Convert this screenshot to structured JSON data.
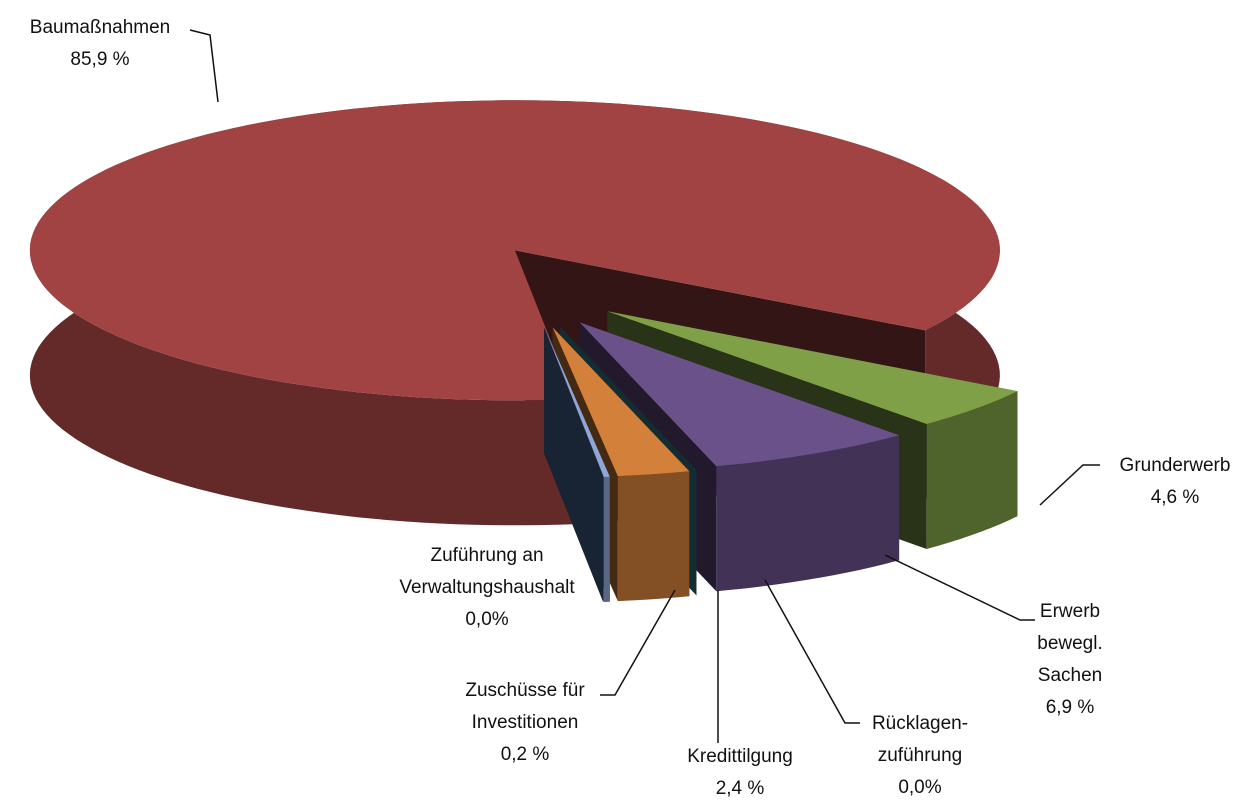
{
  "chart_data": {
    "type": "pie3d",
    "categories": [
      "Zuführung an\nVerwaltungshaushalt",
      "Zuschüsse für\nInvestitionen",
      "Kredittilgung",
      "Rücklagen-\nzuführung",
      "Erwerb\nbewegl.\nSachen",
      "Grunderwerb",
      "Baumaßnahmen"
    ],
    "values": [
      0.0,
      0.2,
      2.4,
      0.0,
      6.9,
      4.6,
      85.9
    ],
    "value_labels": [
      "0,0%",
      "0,2 %",
      "2,4 %",
      "0,0%",
      "6,9 %",
      "4,6 %",
      "85,9 %"
    ],
    "colors": [
      "#4a6fa0",
      "#8fa6d6",
      "#d3803b",
      "#3e8e9e",
      "#6b5189",
      "#80a048",
      "#a04342"
    ]
  }
}
